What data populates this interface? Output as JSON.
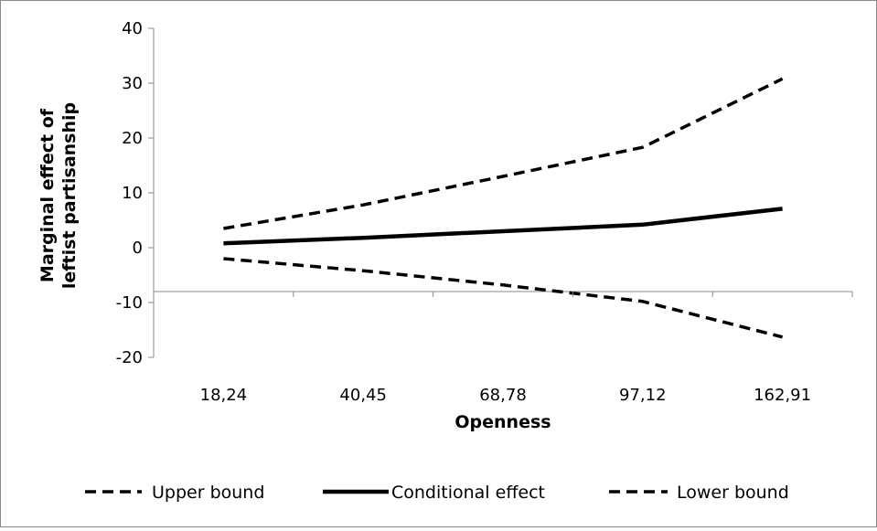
{
  "chart_data": {
    "type": "line",
    "categories": [
      "18,24",
      "40,45",
      "68,78",
      "97,12",
      "162,91"
    ],
    "series": [
      {
        "name": "Upper bound",
        "style": "dashed",
        "width": 3.5,
        "values": [
          3.5,
          7.8,
          13,
          18.3,
          30.8
        ]
      },
      {
        "name": "Conditional effect",
        "style": "solid",
        "width": 4.5,
        "values": [
          0.8,
          1.8,
          3.0,
          4.2,
          7.1
        ]
      },
      {
        "name": "Lower bound",
        "style": "dashed",
        "width": 3.5,
        "values": [
          -2.0,
          -4.2,
          -6.8,
          -9.8,
          -16.3
        ]
      }
    ],
    "xlabel": "Openness",
    "ylabel_lines": [
      "Marginal effect of",
      "leftist partisanship"
    ],
    "yticks": [
      "40",
      "30",
      "20",
      "10",
      "0",
      "-10",
      "-20"
    ],
    "ylim": [
      -20,
      40
    ],
    "x_axis_crosses_at": -8,
    "legend_position": "bottom",
    "colors": {
      "line": "#000000",
      "axis": "#8a8a8a",
      "frame": "#8a8a8a",
      "background": "#ffffff"
    }
  }
}
